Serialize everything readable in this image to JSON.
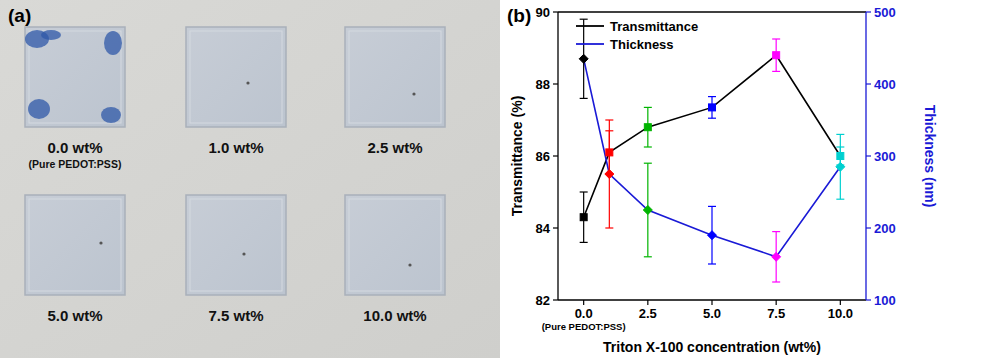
{
  "photo": {
    "panel": "(a)",
    "samples": [
      {
        "label": "0.0 wt%",
        "note": "(Pure PEDOT:PSS)"
      },
      {
        "label": "1.0 wt%"
      },
      {
        "label": "2.5 wt%"
      },
      {
        "label": "5.0 wt%"
      },
      {
        "label": "7.5 wt%"
      },
      {
        "label": "10.0 wt%"
      }
    ]
  },
  "chart_data": {
    "panel": "(b)",
    "type": "line",
    "x_label": "Triton X-100 concentration (wt%)",
    "y_label": "Transmittance (%)",
    "y2_label": "Thickness (nm)",
    "x": [
      0,
      1,
      2.5,
      5,
      7.5,
      10
    ],
    "xlim": [
      -1,
      11
    ],
    "xticks": [
      {
        "value": 0,
        "label": "0.0"
      },
      {
        "value": 2.5,
        "label": "2.5"
      },
      {
        "value": 5,
        "label": "5.0"
      },
      {
        "value": 7.5,
        "label": "7.5"
      },
      {
        "value": 10,
        "label": "10.0"
      }
    ],
    "ylim": [
      82,
      90
    ],
    "yticks": [
      82,
      84,
      86,
      88,
      90
    ],
    "y2lim": [
      100,
      500
    ],
    "y2ticks": [
      100,
      200,
      300,
      400,
      500
    ],
    "annotations": [
      {
        "x": 0,
        "text": "(Pure PEDOT:PSS)"
      }
    ],
    "legend": "upper left",
    "series": [
      {
        "name": "Transmittance",
        "color": "#000000",
        "marker": "square",
        "colors": [
          "#000000",
          "#ff0000",
          "#00b400",
          "#0000ff",
          "#ff00ff",
          "#00d0d0"
        ],
        "values": [
          84.3,
          86.1,
          86.8,
          87.35,
          88.8,
          86.0
        ],
        "errors": [
          0.7,
          0.6,
          0.55,
          0.3,
          0.45,
          0.25
        ]
      },
      {
        "name": "Thickness",
        "color": "#1a1ad6",
        "marker": "diamond",
        "axis": "y2",
        "colors": [
          "#000000",
          "#ff0000",
          "#00b400",
          "#0000ff",
          "#ff00ff",
          "#00d0d0"
        ],
        "values": [
          435,
          275,
          225,
          190,
          160,
          285
        ],
        "errors": [
          55,
          75,
          65,
          40,
          35,
          45
        ]
      }
    ]
  }
}
